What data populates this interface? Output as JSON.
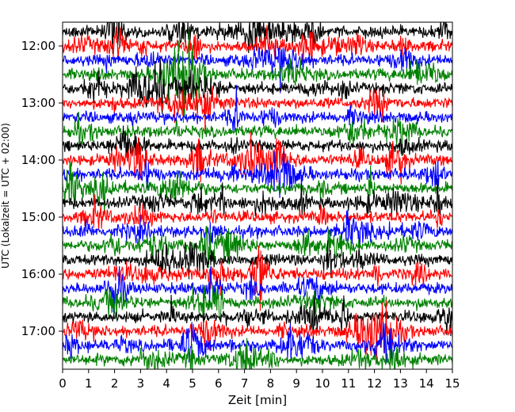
{
  "chart_data": {
    "type": "line",
    "title": "",
    "xlabel": "Zeit  [min]",
    "ylabel": "UTC (Lokalzeit = UTC + 02:00)",
    "xlim": [
      0,
      15
    ],
    "x_ticks": [
      "0",
      "1",
      "2",
      "3",
      "4",
      "5",
      "6",
      "7",
      "8",
      "9",
      "10",
      "11",
      "12",
      "13",
      "14",
      "15"
    ],
    "y_tick_labels": [
      "12:00",
      "13:00",
      "14:00",
      "15:00",
      "16:00",
      "17:00"
    ],
    "start_time": "11:45",
    "trace_interval_minutes": 15,
    "num_traces": 24,
    "series_colors": [
      "#000000",
      "#ff0000",
      "#0000ff",
      "#008000"
    ],
    "grid": false,
    "legend": "none"
  }
}
